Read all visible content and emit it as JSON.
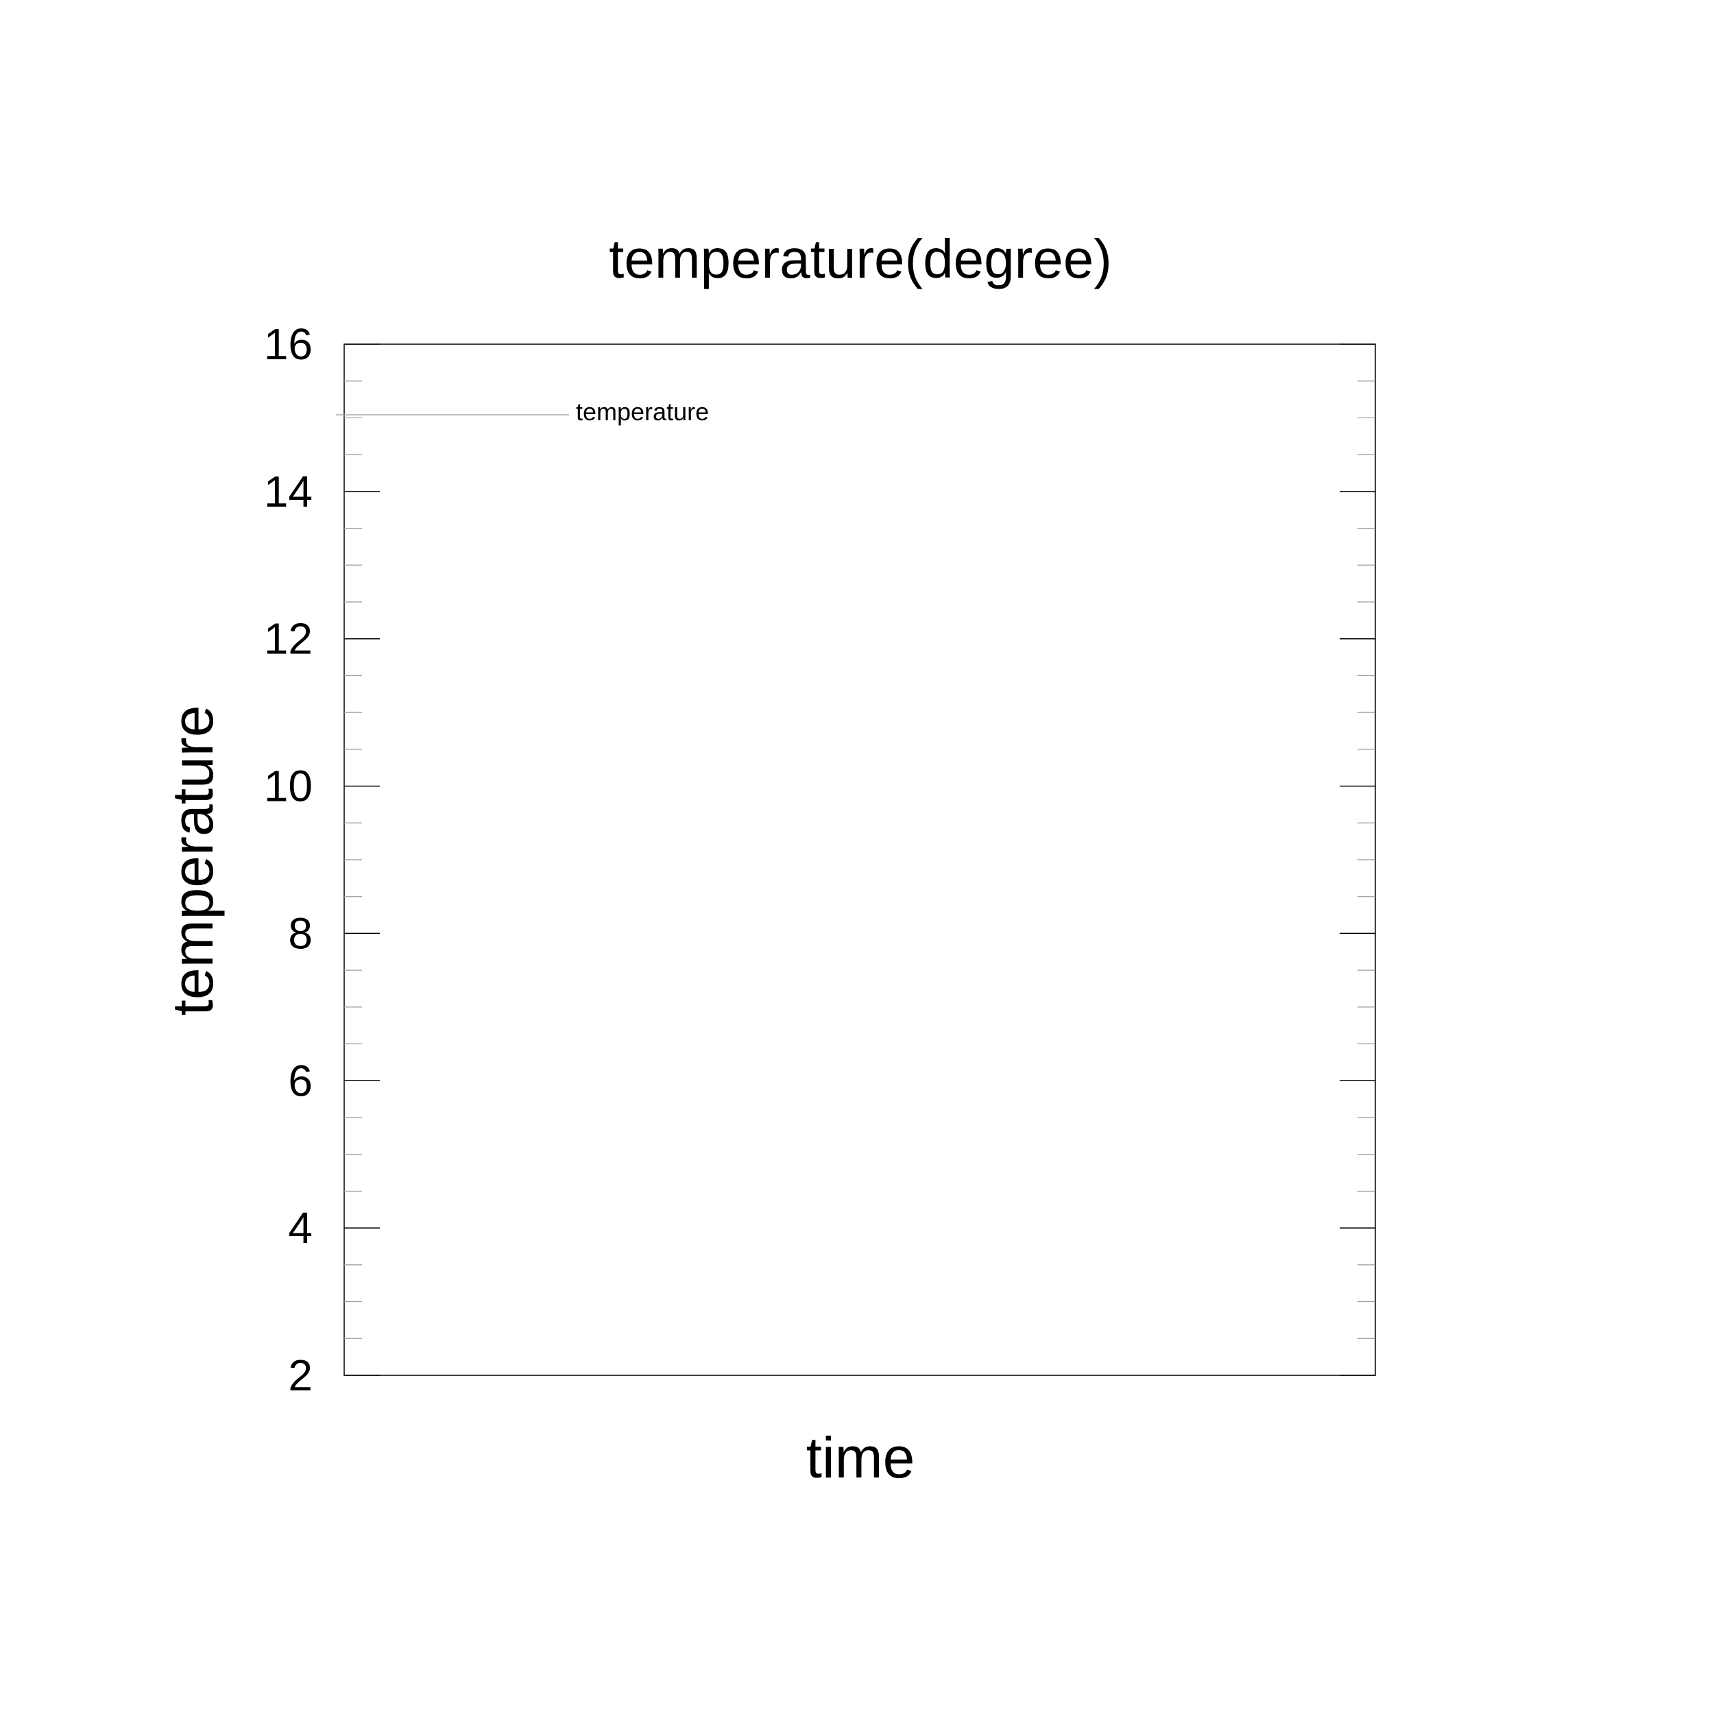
{
  "chart_data": {
    "type": "line",
    "title": "temperature(degree)",
    "xlabel": "time",
    "ylabel": "temperature",
    "ylim": [
      2,
      16
    ],
    "y_major_ticks": [
      2,
      4,
      6,
      8,
      10,
      12,
      14,
      16
    ],
    "y_minor_step": 0.5,
    "x_ticks": [],
    "grid": false,
    "legend": {
      "placement": "top-left",
      "entries": [
        "temperature"
      ]
    },
    "series": [
      {
        "name": "temperature",
        "values": []
      }
    ],
    "colors": {
      "axis": "#000000",
      "minor_tick": "#999999",
      "legend_line": "#aaaaaa"
    }
  }
}
